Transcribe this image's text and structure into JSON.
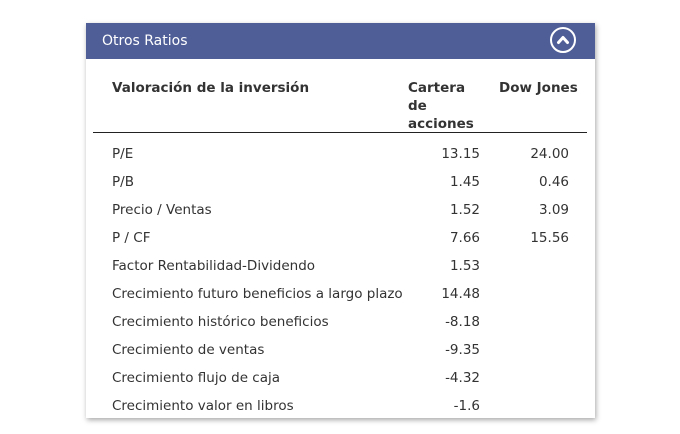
{
  "panel": {
    "title": "Otros Ratios",
    "collapse_icon": "chevron-up-circle-icon"
  },
  "table": {
    "headers": {
      "metric": "Valoración de la inversión",
      "portfolio": "Cartera de acciones",
      "benchmark": "Dow Jones"
    },
    "rows": [
      {
        "label": "P/E",
        "portfolio": "13.15",
        "benchmark": "24.00"
      },
      {
        "label": "P/B",
        "portfolio": "1.45",
        "benchmark": "0.46"
      },
      {
        "label": "Precio / Ventas",
        "portfolio": "1.52",
        "benchmark": "3.09"
      },
      {
        "label": "P / CF",
        "portfolio": "7.66",
        "benchmark": "15.56"
      },
      {
        "label": "Factor Rentabilidad-Dividendo",
        "portfolio": "1.53",
        "benchmark": ""
      },
      {
        "label": "Crecimiento futuro beneficios a largo plazo",
        "portfolio": "14.48",
        "benchmark": ""
      },
      {
        "label": "Crecimiento histórico beneficios",
        "portfolio": "-8.18",
        "benchmark": ""
      },
      {
        "label": "Crecimiento de ventas",
        "portfolio": "-9.35",
        "benchmark": ""
      },
      {
        "label": "Crecimiento flujo de caja",
        "portfolio": "-4.32",
        "benchmark": ""
      },
      {
        "label": "Crecimiento valor en libros",
        "portfolio": "-1.6",
        "benchmark": ""
      }
    ]
  },
  "colors": {
    "header_bg": "#4f5e97",
    "header_text": "#ffffff",
    "body_text": "#333333"
  }
}
